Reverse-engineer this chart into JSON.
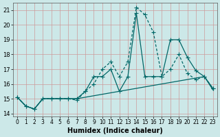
{
  "xlabel": "Humidex (Indice chaleur)",
  "bg_color": "#cce8e8",
  "grid_color": "#cc9999",
  "line_color": "#006666",
  "xlim": [
    -0.5,
    23.5
  ],
  "ylim": [
    13.8,
    21.5
  ],
  "xticks": [
    0,
    1,
    2,
    3,
    4,
    5,
    6,
    7,
    8,
    9,
    10,
    11,
    12,
    13,
    14,
    15,
    16,
    17,
    18,
    19,
    20,
    21,
    22,
    23
  ],
  "yticks": [
    14,
    15,
    16,
    17,
    18,
    19,
    20,
    21
  ],
  "line1_x": [
    0,
    1,
    2,
    3,
    4,
    5,
    6,
    7,
    8,
    9,
    10,
    11,
    12,
    13,
    14,
    15,
    16,
    17,
    18,
    19,
    20,
    21,
    22,
    23
  ],
  "line1_y": [
    15.1,
    14.5,
    14.3,
    15.0,
    15.0,
    15.0,
    15.0,
    15.0,
    15.1,
    15.2,
    15.3,
    15.4,
    15.5,
    15.6,
    15.7,
    15.8,
    15.9,
    16.0,
    16.1,
    16.2,
    16.3,
    16.4,
    16.5,
    15.6
  ],
  "line2_x": [
    0,
    1,
    2,
    3,
    4,
    5,
    6,
    7,
    8,
    9,
    10,
    11,
    12,
    13,
    14,
    15,
    16,
    17,
    18,
    19,
    20,
    21,
    22,
    23
  ],
  "line2_y": [
    15.1,
    14.5,
    14.3,
    15.0,
    15.0,
    15.0,
    15.0,
    14.9,
    15.5,
    16.0,
    17.0,
    17.5,
    16.5,
    17.5,
    21.2,
    20.7,
    19.5,
    16.5,
    17.0,
    18.0,
    16.7,
    16.3,
    16.5,
    15.7
  ],
  "line3_x": [
    0,
    1,
    2,
    3,
    4,
    5,
    6,
    7,
    8,
    9,
    10,
    11,
    12,
    13,
    14,
    15,
    16,
    17,
    18,
    19,
    20,
    21,
    22,
    23
  ],
  "line3_y": [
    15.1,
    14.5,
    14.3,
    15.0,
    15.0,
    15.0,
    15.0,
    15.0,
    15.5,
    16.5,
    16.5,
    17.0,
    15.5,
    16.5,
    20.8,
    16.5,
    16.5,
    16.5,
    19.0,
    19.0,
    17.8,
    16.9,
    16.5,
    15.7
  ]
}
